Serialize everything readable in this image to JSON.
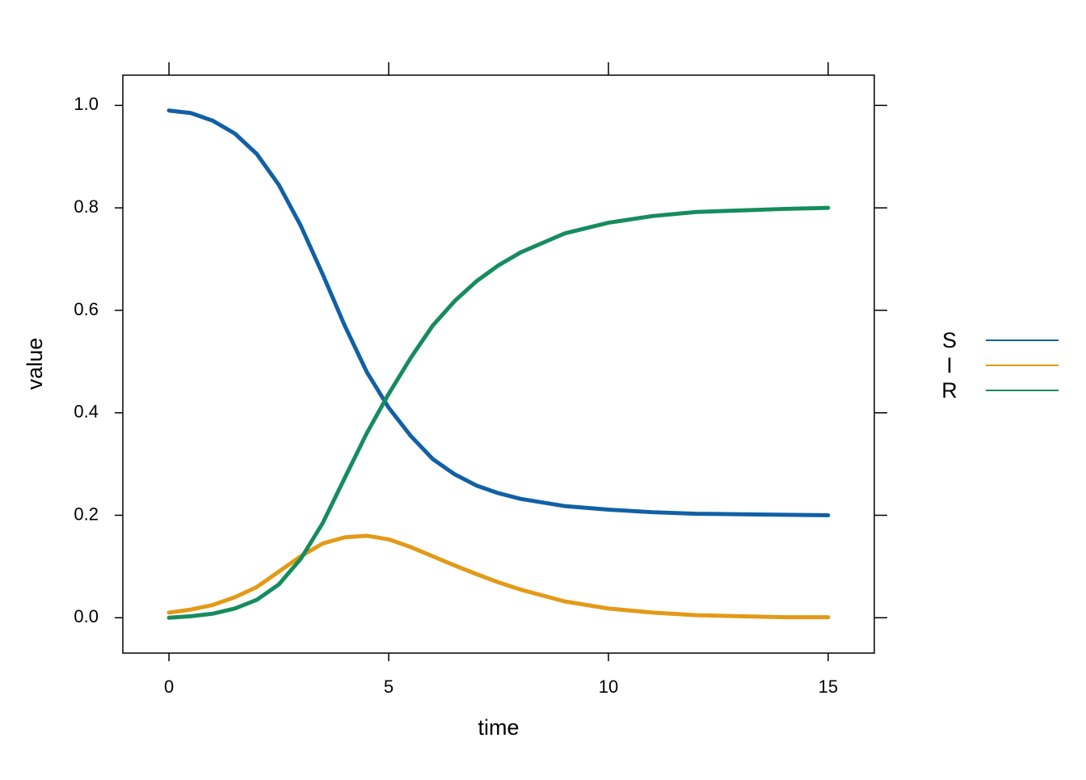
{
  "chart_data": {
    "type": "line",
    "xlabel": "time",
    "ylabel": "value",
    "x": [
      0,
      0.5,
      1,
      1.5,
      2,
      2.5,
      3,
      3.5,
      4,
      4.5,
      5,
      5.5,
      6,
      6.5,
      7,
      7.5,
      8,
      9,
      10,
      11,
      12,
      13,
      14,
      15
    ],
    "series": [
      {
        "name": "S",
        "color": "#1160a6",
        "values": [
          0.99,
          0.985,
          0.97,
          0.945,
          0.905,
          0.845,
          0.765,
          0.67,
          0.57,
          0.48,
          0.41,
          0.355,
          0.31,
          0.28,
          0.258,
          0.243,
          0.232,
          0.218,
          0.211,
          0.206,
          0.203,
          0.202,
          0.201,
          0.2
        ]
      },
      {
        "name": "I",
        "color": "#e39a17",
        "values": [
          0.01,
          0.016,
          0.025,
          0.04,
          0.06,
          0.09,
          0.12,
          0.145,
          0.157,
          0.16,
          0.153,
          0.138,
          0.12,
          0.102,
          0.085,
          0.069,
          0.055,
          0.032,
          0.018,
          0.01,
          0.005,
          0.003,
          0.001,
          0.001
        ]
      },
      {
        "name": "R",
        "color": "#168c5e",
        "values": [
          0,
          0.003,
          0.008,
          0.018,
          0.035,
          0.065,
          0.115,
          0.185,
          0.273,
          0.36,
          0.437,
          0.507,
          0.57,
          0.618,
          0.657,
          0.688,
          0.713,
          0.75,
          0.771,
          0.784,
          0.792,
          0.795,
          0.798,
          0.8
        ]
      }
    ],
    "xlim": [
      -1.05,
      16.05
    ],
    "ylim": [
      -0.069,
      1.059
    ],
    "xticks": [
      0,
      5,
      10,
      15
    ],
    "yticks": [
      {
        "value": 0,
        "label": "0.0"
      },
      0.2,
      0.4,
      0.6,
      0.8,
      {
        "value": 1,
        "label": "1.0"
      }
    ],
    "legend": "right"
  }
}
